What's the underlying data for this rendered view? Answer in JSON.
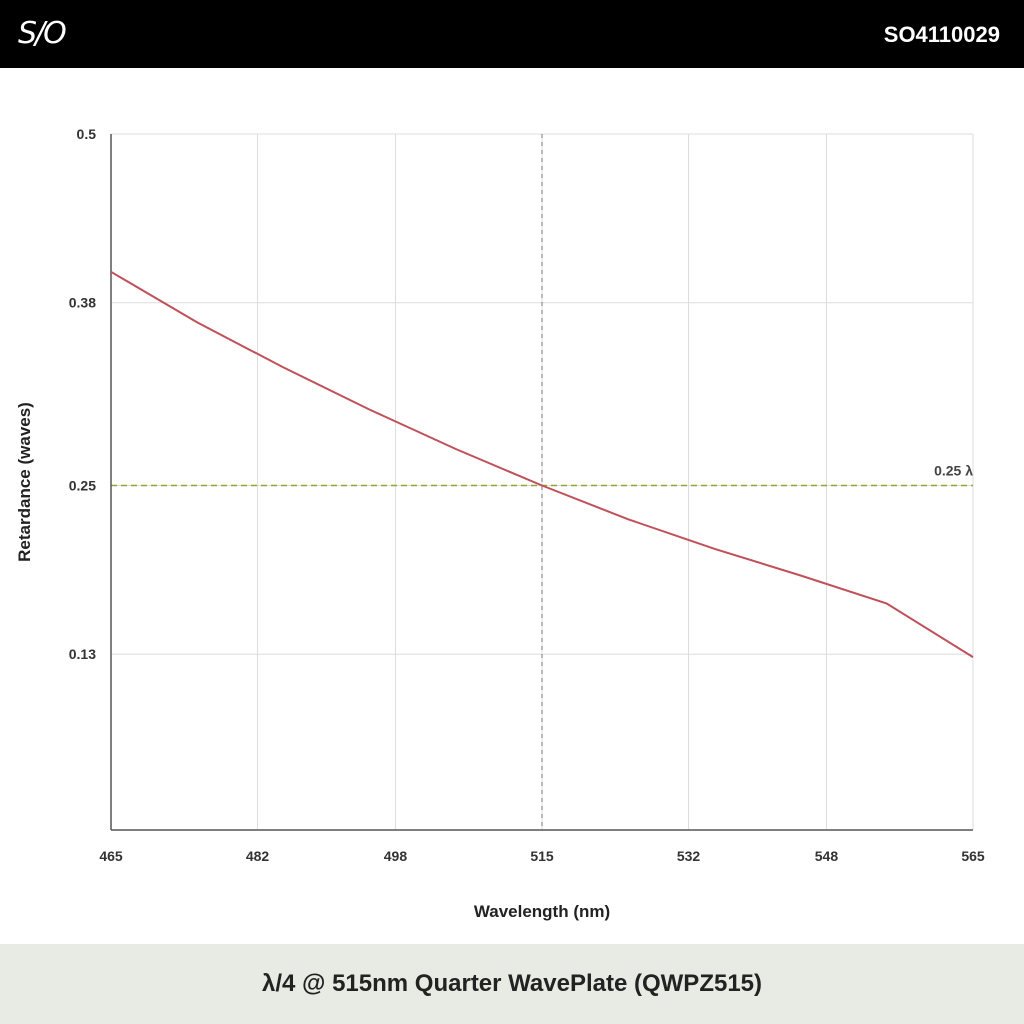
{
  "header": {
    "logo_text": "S/O",
    "part_number": "SO4110029"
  },
  "footer": {
    "title": "λ/4 @ 515nm Quarter WavePlate (QWPZ515)"
  },
  "colors": {
    "curve": "#c0505a",
    "reference_line": "#8aa832",
    "grid": "#dddddd",
    "center_marker": "#777777",
    "footer_bg": "#e8ebe3"
  },
  "chart_data": {
    "type": "line",
    "title": "",
    "xlabel": "Wavelength (nm)",
    "ylabel": "Retardance (waves)",
    "xlim": [
      465,
      565
    ],
    "ylim": [
      0.005,
      0.5
    ],
    "x_ticks": [
      "465",
      "482",
      "498",
      "515",
      "532",
      "548",
      "565"
    ],
    "y_ticks": [
      "0.5",
      "0.38",
      "0.25",
      "0.13"
    ],
    "grid": true,
    "series": [
      {
        "x": [
          465,
          475,
          485,
          495,
          505,
          515,
          525,
          535,
          545,
          555,
          565
        ],
        "y": [
          0.402,
          0.366,
          0.334,
          0.304,
          0.276,
          0.25,
          0.226,
          0.205,
          0.186,
          0.166,
          0.128
        ]
      }
    ],
    "reference_line": {
      "y": 0.25,
      "label": "0.25 λ"
    },
    "center_marker": {
      "x": 515
    }
  }
}
